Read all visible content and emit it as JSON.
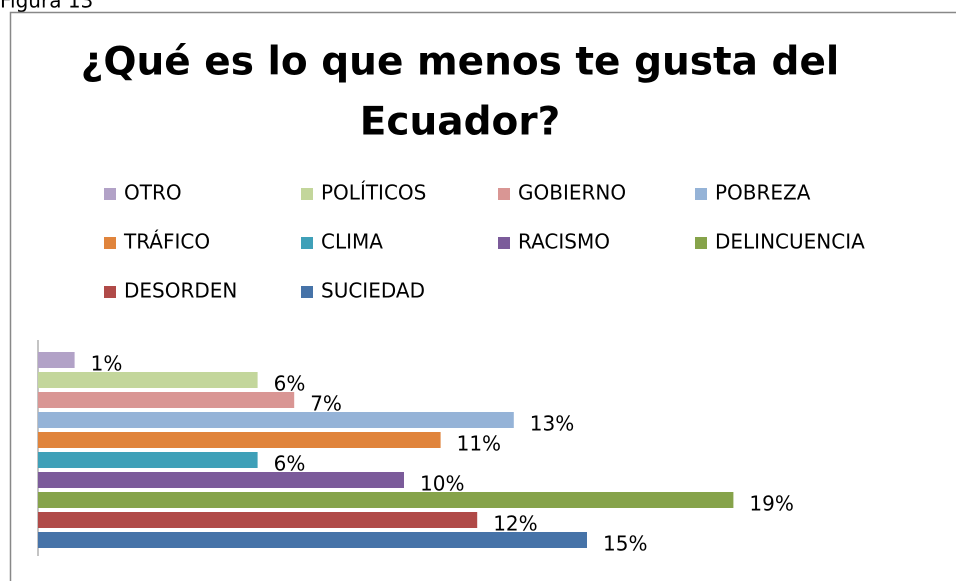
{
  "figure_label": "Figura 13",
  "chart_data": {
    "type": "bar",
    "orientation": "horizontal",
    "title": [
      "¿Qué es lo que menos te gusta del",
      "Ecuador?"
    ],
    "xlim": [
      0,
      20
    ],
    "series": [
      {
        "name": "OTRO",
        "color": "#b2a2c7",
        "values": [
          1
        ],
        "value_labels": [
          "1%"
        ]
      },
      {
        "name": "POLÍTICOS",
        "color": "#c3d69b",
        "values": [
          6
        ],
        "value_labels": [
          "6%"
        ]
      },
      {
        "name": "GOBIERNO",
        "color": "#d99694",
        "values": [
          7
        ],
        "value_labels": [
          "7%"
        ]
      },
      {
        "name": "POBREZA",
        "color": "#95b3d7",
        "values": [
          13
        ],
        "value_labels": [
          "13%"
        ]
      },
      {
        "name": "TRÁFICO",
        "color": "#e0843c",
        "values": [
          11
        ],
        "value_labels": [
          "11%"
        ]
      },
      {
        "name": "CLIMA",
        "color": "#3fa0b8",
        "values": [
          6
        ],
        "value_labels": [
          "6%"
        ]
      },
      {
        "name": "RACISMO",
        "color": "#7b5b9a",
        "values": [
          10
        ],
        "value_labels": [
          "10%"
        ]
      },
      {
        "name": "DELINCUENCIA",
        "color": "#86a34a",
        "values": [
          19
        ],
        "value_labels": [
          "19%"
        ]
      },
      {
        "name": "DESORDEN",
        "color": "#b04a48",
        "values": [
          12
        ],
        "value_labels": [
          "12%"
        ]
      },
      {
        "name": "SUCIEDAD",
        "color": "#4673a8",
        "values": [
          15
        ],
        "value_labels": [
          "15%"
        ]
      }
    ],
    "legend": "top"
  }
}
